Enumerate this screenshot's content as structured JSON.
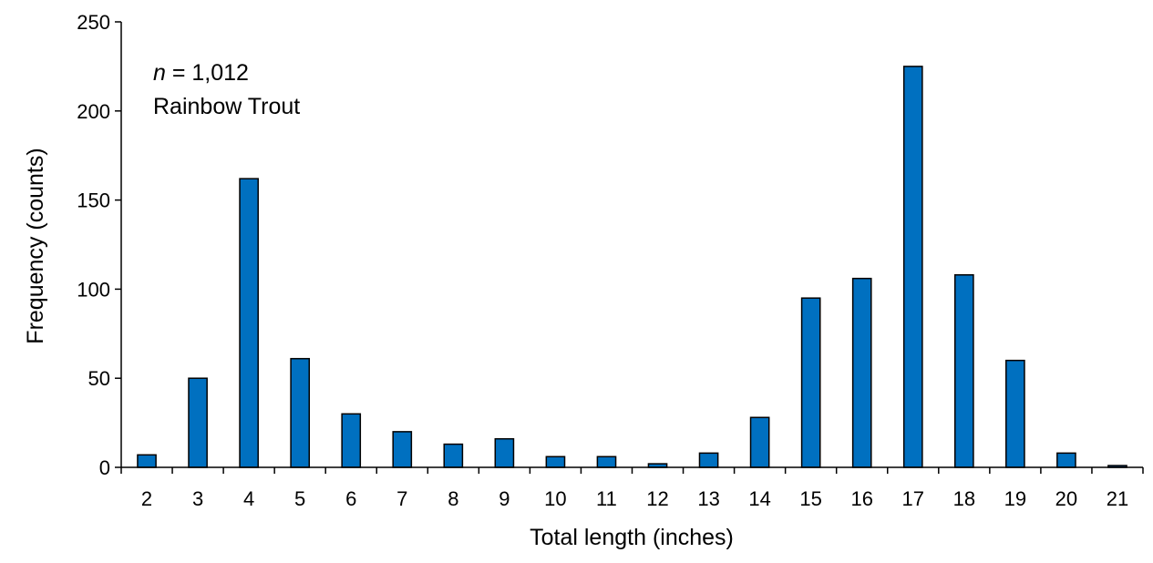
{
  "chart_data": {
    "type": "bar",
    "categories": [
      "2",
      "3",
      "4",
      "5",
      "6",
      "7",
      "8",
      "9",
      "10",
      "11",
      "12",
      "13",
      "14",
      "15",
      "16",
      "17",
      "18",
      "19",
      "20",
      "21"
    ],
    "values": [
      7,
      50,
      162,
      61,
      30,
      20,
      13,
      16,
      6,
      6,
      2,
      8,
      28,
      95,
      106,
      225,
      108,
      60,
      8,
      1
    ],
    "xlabel": "Total length (inches)",
    "ylabel": "Frequency (counts)",
    "ylim": [
      0,
      250
    ],
    "yticks": [
      0,
      50,
      100,
      150,
      200,
      250
    ],
    "grid": false,
    "bar_color": "#0070C0",
    "annotation": {
      "n_symbol": "n",
      "n_value": " = 1,012",
      "species": "Rainbow Trout"
    }
  }
}
